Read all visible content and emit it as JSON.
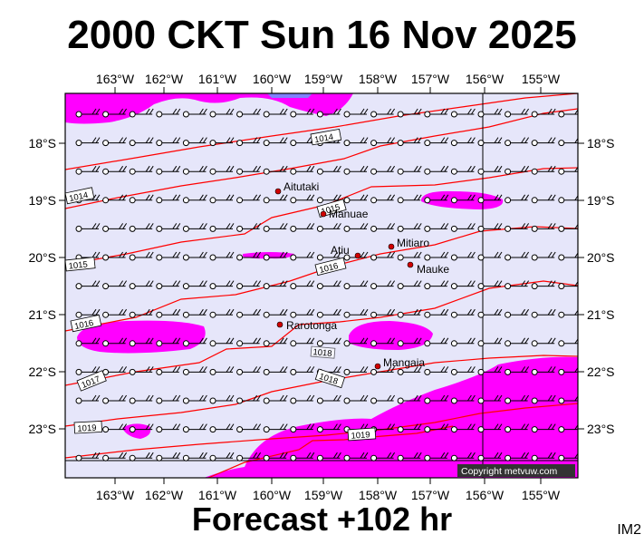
{
  "title": "2000 CKT Sun 16 Nov 2025",
  "subtitle": "Forecast +102 hr",
  "corner_code": "IM2",
  "copyright": "Copyright metvuw.com",
  "colors": {
    "background": "#e6e6fa",
    "rain": "#ff00ff",
    "isobar": "#ff0000",
    "wind": "#000000"
  },
  "axes": {
    "lon_labels": [
      "163°W",
      "162°W",
      "161°W",
      "160°W",
      "159°W",
      "158°W",
      "157°W",
      "156°W",
      "155°W"
    ],
    "lat_labels": [
      "18°S",
      "19°S",
      "20°S",
      "21°S",
      "22°S",
      "23°S"
    ]
  },
  "isobars": [
    {
      "value": 1014,
      "label": "1014"
    },
    {
      "value": 1014,
      "label": "1014"
    },
    {
      "value": 1015,
      "label": "1015"
    },
    {
      "value": 1015,
      "label": "1015"
    },
    {
      "value": 1016,
      "label": "1016"
    },
    {
      "value": 1016,
      "label": "1016"
    },
    {
      "value": 1017,
      "label": "1017"
    },
    {
      "value": 1018,
      "label": "1018"
    },
    {
      "value": 1019,
      "label": "1019"
    },
    {
      "value": 1019,
      "label": "1019"
    },
    {
      "value": 1018,
      "label": "1018"
    }
  ],
  "places": [
    {
      "name": "Aitutaki"
    },
    {
      "name": "Manuae"
    },
    {
      "name": "Atiu"
    },
    {
      "name": "Mitiaro"
    },
    {
      "name": "Mauke"
    },
    {
      "name": "Rarotonga"
    },
    {
      "name": "Mangaia"
    }
  ]
}
